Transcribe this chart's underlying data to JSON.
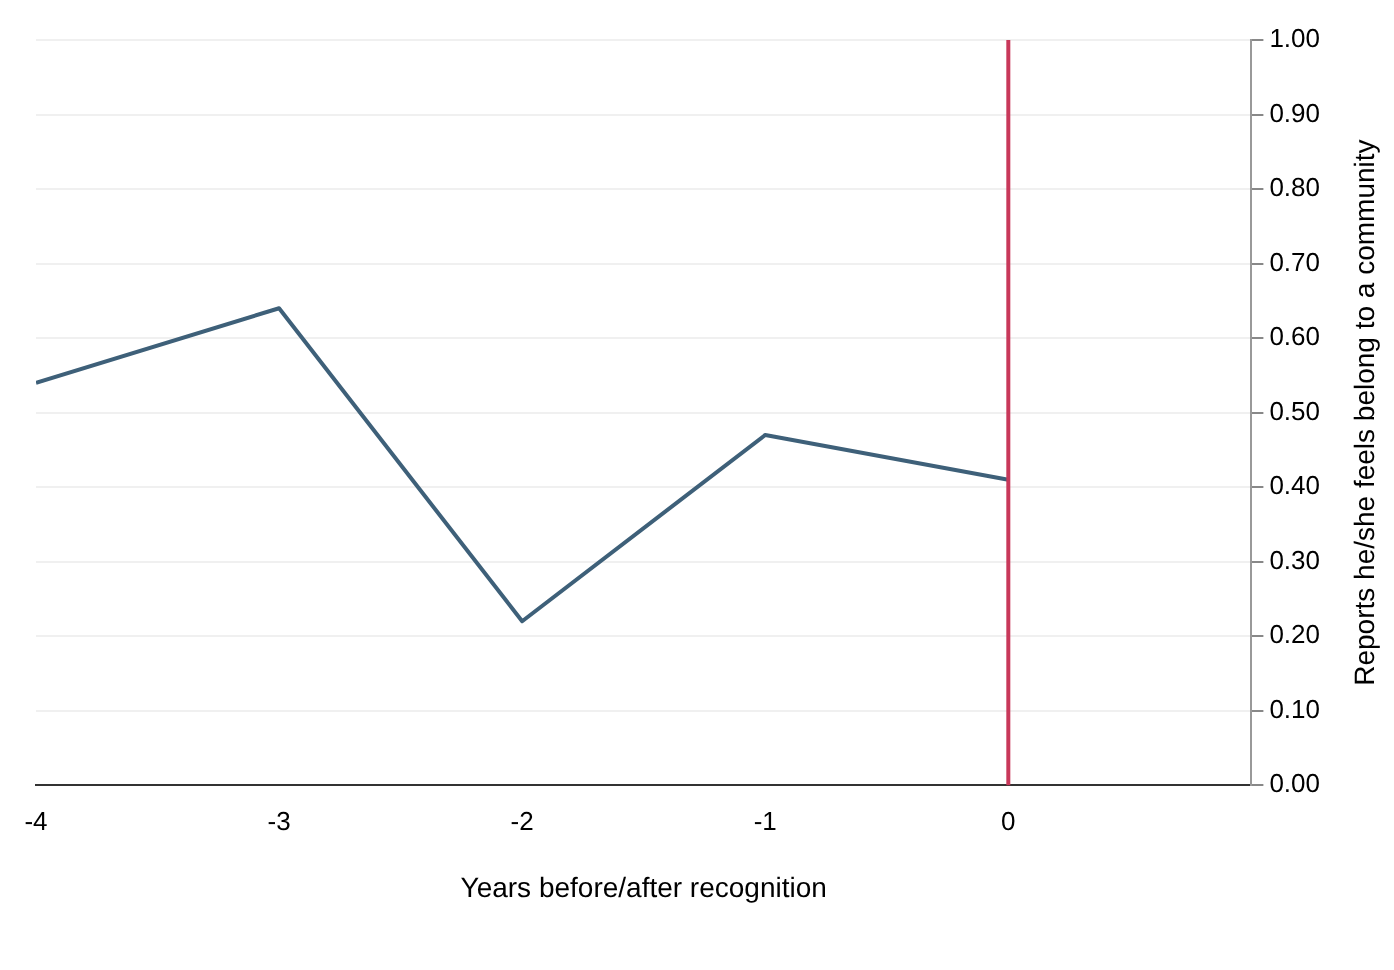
{
  "chart_data": {
    "type": "line",
    "xlabel": "Years before/after recognition",
    "ylabel": "Reports he/she feels belong to a community",
    "x": [
      -4,
      -3,
      -2,
      -1,
      0
    ],
    "series": [
      {
        "color": "#3e6079",
        "values": [
          0.54,
          0.64,
          0.22,
          0.47,
          0.41
        ]
      }
    ],
    "xlim": [
      -4,
      1
    ],
    "xticks": [
      -4,
      -3,
      -2,
      -1,
      0
    ],
    "ylim": [
      0,
      1
    ],
    "yticks": [
      {
        "value": 0,
        "label": "0.00"
      },
      {
        "value": 0.1,
        "label": "0.10"
      },
      {
        "value": 0.2,
        "label": "0.20"
      },
      {
        "value": 0.3,
        "label": "0.30"
      },
      {
        "value": 0.4,
        "label": "0.40"
      },
      {
        "value": 0.5,
        "label": "0.50"
      },
      {
        "value": 0.6,
        "label": "0.60"
      },
      {
        "value": 0.7,
        "label": "0.70"
      },
      {
        "value": 0.8,
        "label": "0.80"
      },
      {
        "value": 0.9,
        "label": "0.90"
      },
      {
        "value": 1,
        "label": "1.00"
      }
    ],
    "ref_lines": [
      {
        "axis": "x",
        "value": 0,
        "color": "#c8385a"
      }
    ],
    "grid": "y",
    "legend": false,
    "marker": "none",
    "line_style": "solid"
  }
}
